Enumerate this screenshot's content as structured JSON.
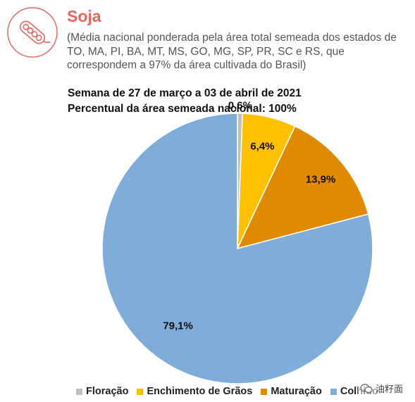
{
  "header": {
    "title": "Soja",
    "subtitle": "(Média nacional ponderada pela área total semeada dos estados de TO, MA, PI, BA, MT, MS, GO, MG, SP, PR, SC e RS, que correspondem a 97% da área cultivada do Brasil)",
    "logo_icon": "soybean-pod-icon"
  },
  "colors": {
    "accent": "#e5675f",
    "floracao": "#bfbfbf",
    "enchimento": "#ffc000",
    "maturacao": "#e08a00",
    "colhido": "#7facd9"
  },
  "watermark": {
    "text": "油籽面",
    "icon": "wechat-icon"
  },
  "chart_data": {
    "type": "pie",
    "title": [
      "Semana de 27 de março a 03 de abril de 2021",
      "Percentual da área semeada nacional: 100%"
    ],
    "labels": [
      "Floração",
      "Enchimento de Grãos",
      "Maturação",
      "Colhido"
    ],
    "values": [
      0.6,
      6.4,
      13.9,
      79.1
    ],
    "value_labels": [
      "0,6%",
      "6,4%",
      "13,9%",
      "79,1%"
    ],
    "legend_position": "bottom",
    "start_angle": "12 o'clock, clockwise"
  }
}
